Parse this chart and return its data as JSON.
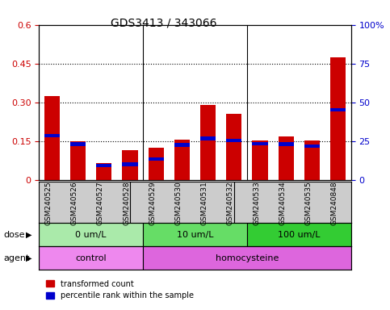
{
  "title": "GDS3413 / 343066",
  "samples": [
    "GSM240525",
    "GSM240526",
    "GSM240527",
    "GSM240528",
    "GSM240529",
    "GSM240530",
    "GSM240531",
    "GSM240532",
    "GSM240533",
    "GSM240534",
    "GSM240535",
    "GSM240848"
  ],
  "red_values": [
    0.325,
    0.15,
    0.065,
    0.115,
    0.125,
    0.155,
    0.29,
    0.255,
    0.152,
    0.168,
    0.152,
    0.475
  ],
  "blue_values_left": [
    0.17,
    0.138,
    0.055,
    0.06,
    0.08,
    0.135,
    0.16,
    0.152,
    0.14,
    0.138,
    0.13,
    0.272
  ],
  "ylim_left": [
    0,
    0.6
  ],
  "ylim_right": [
    0,
    100
  ],
  "yticks_left": [
    0,
    0.15,
    0.3,
    0.45,
    0.6
  ],
  "ytick_labels_left": [
    "0",
    "0.15",
    "0.30",
    "0.45",
    "0.6"
  ],
  "yticks_right": [
    0,
    25,
    50,
    75,
    100
  ],
  "ytick_labels_right": [
    "0",
    "25",
    "50",
    "75",
    "100%"
  ],
  "dose_groups": [
    {
      "label": "0 um/L",
      "start": 0,
      "end": 4,
      "color": "#aaeaaa"
    },
    {
      "label": "10 um/L",
      "start": 4,
      "end": 8,
      "color": "#66dd66"
    },
    {
      "label": "100 um/L",
      "start": 8,
      "end": 12,
      "color": "#33cc33"
    }
  ],
  "agent_groups": [
    {
      "label": "control",
      "start": 0,
      "end": 4,
      "color": "#ee88ee"
    },
    {
      "label": "homocysteine",
      "start": 4,
      "end": 12,
      "color": "#dd66dd"
    }
  ],
  "dose_label": "dose",
  "agent_label": "agent",
  "legend_red": "transformed count",
  "legend_blue": "percentile rank within the sample",
  "bar_width": 0.6,
  "red_color": "#cc0000",
  "blue_color": "#0000cc",
  "left_axis_color": "#cc0000",
  "right_axis_color": "#0000cc",
  "bg_plot_color": "#ffffff",
  "tick_area_color": "#cccccc",
  "group_separators": [
    3.5,
    7.5
  ]
}
